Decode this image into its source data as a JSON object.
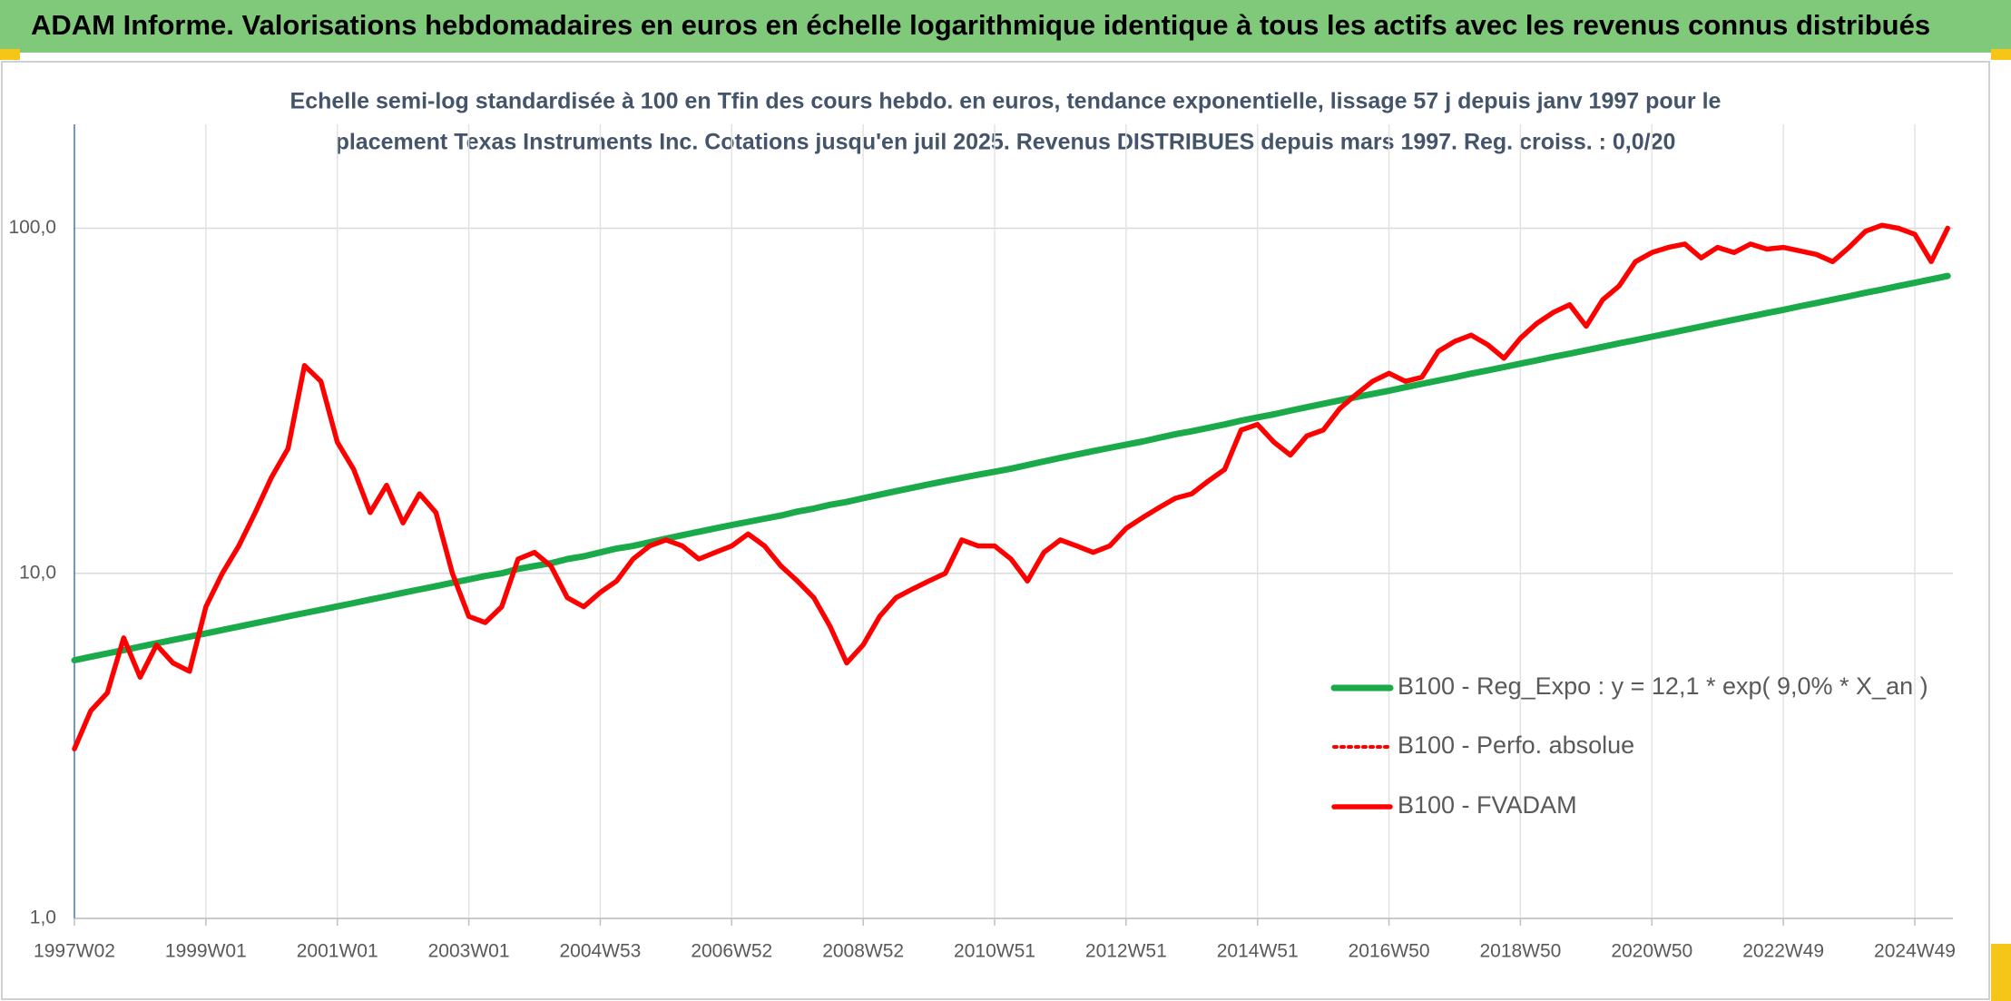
{
  "chart_data": {
    "type": "line",
    "title": "ADAM Informe. Valorisations hebdomadaires en euros en échelle logarithmique identique à tous les actifs avec les revenus connus distribués",
    "subtitle": [
      "Echelle semi-log standardisée à 100 en Tfin des cours hebdo. en euros, tendance exponentielle, lissage 57 j depuis janv 1997 pour le",
      "placement Texas Instruments Inc. Cotations jusqu'en juil 2025. Revenus DISTRIBUES depuis mars 1997. Reg. croiss. : 0,0/20"
    ],
    "log_scale": true,
    "grid": true,
    "legend_position": "right",
    "ylim": [
      1,
      200
    ],
    "yticks": [
      {
        "value": 1,
        "label": "1,0"
      },
      {
        "value": 10,
        "label": "10,0"
      },
      {
        "value": 100,
        "label": "100,0"
      }
    ],
    "categories": [
      "1997W02",
      null,
      null,
      null,
      null,
      null,
      null,
      null,
      "1999W01",
      null,
      null,
      null,
      null,
      null,
      null,
      null,
      "2001W01",
      null,
      null,
      null,
      null,
      null,
      null,
      null,
      "2003W01",
      null,
      null,
      null,
      null,
      null,
      null,
      null,
      "2004W53",
      null,
      null,
      null,
      null,
      null,
      null,
      null,
      "2006W52",
      null,
      null,
      null,
      null,
      null,
      null,
      null,
      "2008W52",
      null,
      null,
      null,
      null,
      null,
      null,
      null,
      "2010W51",
      null,
      null,
      null,
      null,
      null,
      null,
      null,
      "2012W51",
      null,
      null,
      null,
      null,
      null,
      null,
      null,
      "2014W51",
      null,
      null,
      null,
      null,
      null,
      null,
      null,
      "2016W50",
      null,
      null,
      null,
      null,
      null,
      null,
      null,
      "2018W50",
      null,
      null,
      null,
      null,
      null,
      null,
      null,
      "2020W50",
      null,
      null,
      null,
      null,
      null,
      null,
      null,
      "2022W49",
      null,
      null,
      null,
      null,
      null,
      null,
      null,
      "2024W49",
      null,
      null
    ],
    "series": [
      {
        "name": "B100 - Reg_Expo : y = 12,1 * exp( 9,0% *  X_an )",
        "color": "#1aaa4a",
        "style": "solid",
        "values": [
          5.6,
          5.73,
          5.86,
          5.99,
          6.13,
          6.27,
          6.41,
          6.55,
          6.7,
          6.85,
          7.01,
          7.17,
          7.33,
          7.5,
          7.67,
          7.84,
          8.02,
          8.2,
          8.39,
          8.58,
          8.78,
          8.98,
          9.18,
          9.39,
          9.6,
          9.82,
          10.0,
          10.3,
          10.5,
          10.7,
          11.0,
          11.2,
          11.5,
          11.8,
          12.0,
          12.3,
          12.6,
          12.9,
          13.2,
          13.5,
          13.8,
          14.1,
          14.4,
          14.7,
          15.1,
          15.4,
          15.8,
          16.1,
          16.5,
          16.9,
          17.3,
          17.7,
          18.1,
          18.5,
          18.9,
          19.3,
          19.7,
          20.1,
          20.6,
          21.1,
          21.6,
          22.1,
          22.6,
          23.1,
          23.6,
          24.1,
          24.7,
          25.3,
          25.8,
          26.4,
          27.0,
          27.7,
          28.3,
          28.9,
          29.6,
          30.3,
          31.0,
          31.7,
          32.4,
          33.1,
          33.8,
          34.6,
          35.4,
          36.2,
          37.0,
          37.9,
          38.7,
          39.6,
          40.5,
          41.4,
          42.4,
          43.3,
          44.3,
          45.3,
          46.4,
          47.4,
          48.5,
          49.6,
          50.7,
          51.9,
          53.1,
          54.3,
          55.5,
          56.8,
          58.0,
          59.4,
          60.7,
          62.1,
          63.5,
          65.0,
          66.4,
          68.0,
          69.5,
          71.1,
          72.7
        ]
      },
      {
        "name": "B100 - Perfo. absolue",
        "color": "#ff0000",
        "style": "dotted",
        "values": [
          3.1,
          4.0,
          4.5,
          6.5,
          5.0,
          6.2,
          5.5,
          5.2,
          8,
          10,
          12,
          15,
          19,
          23,
          40,
          36,
          24,
          20,
          15,
          18,
          14,
          17,
          15,
          10,
          7.5,
          7.2,
          8.0,
          11,
          11.5,
          10.5,
          8.5,
          8.0,
          8.8,
          9.5,
          11,
          12,
          12.5,
          12,
          11,
          11.5,
          12,
          13,
          12,
          10.5,
          9.5,
          8.5,
          7,
          5.5,
          6.2,
          7.5,
          8.5,
          9,
          9.5,
          10,
          12.5,
          12,
          12,
          11,
          9.5,
          11.5,
          12.5,
          12,
          11.5,
          12,
          13.5,
          14.5,
          15.5,
          16.5,
          17,
          18.5,
          20,
          26,
          27,
          24,
          22,
          25,
          26,
          30,
          33,
          36,
          38,
          36,
          37,
          44,
          47,
          49,
          46,
          42,
          48,
          53,
          57,
          60,
          52,
          62,
          68,
          80,
          85,
          88,
          90,
          82,
          88,
          85,
          90,
          87,
          88,
          86,
          84,
          80,
          88,
          98,
          102,
          100,
          96,
          80,
          100
        ]
      },
      {
        "name": "B100 - FVADAM",
        "color": "#ff0000",
        "style": "solid",
        "values": [
          3.1,
          4.0,
          4.5,
          6.5,
          5.0,
          6.2,
          5.5,
          5.2,
          8,
          10,
          12,
          15,
          19,
          23,
          40,
          36,
          24,
          20,
          15,
          18,
          14,
          17,
          15,
          10,
          7.5,
          7.2,
          8.0,
          11,
          11.5,
          10.5,
          8.5,
          8.0,
          8.8,
          9.5,
          11,
          12,
          12.5,
          12,
          11,
          11.5,
          12,
          13,
          12,
          10.5,
          9.5,
          8.5,
          7,
          5.5,
          6.2,
          7.5,
          8.5,
          9,
          9.5,
          10,
          12.5,
          12,
          12,
          11,
          9.5,
          11.5,
          12.5,
          12,
          11.5,
          12,
          13.5,
          14.5,
          15.5,
          16.5,
          17,
          18.5,
          20,
          26,
          27,
          24,
          22,
          25,
          26,
          30,
          33,
          36,
          38,
          36,
          37,
          44,
          47,
          49,
          46,
          42,
          48,
          53,
          57,
          60,
          52,
          62,
          68,
          80,
          85,
          88,
          90,
          82,
          88,
          85,
          90,
          87,
          88,
          86,
          84,
          80,
          88,
          98,
          102,
          100,
          96,
          80,
          100
        ]
      }
    ]
  }
}
